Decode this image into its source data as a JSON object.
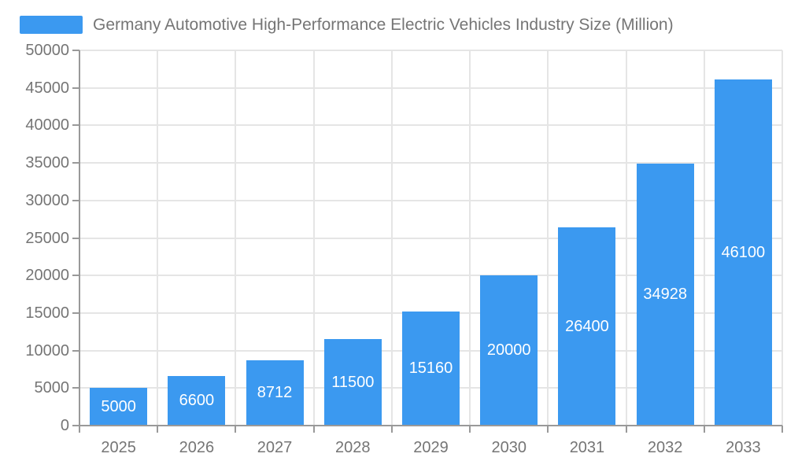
{
  "chart_data": {
    "type": "bar",
    "title": "Germany Automotive High-Performance Electric Vehicles Industry Size (Million)",
    "legend_entries": [
      "Germany Automotive High-Performance Electric Vehicles Industry Size (Million)"
    ],
    "legend_position": "top-left",
    "categories": [
      "2025",
      "2026",
      "2027",
      "2028",
      "2029",
      "2030",
      "2031",
      "2032",
      "2033"
    ],
    "series": [
      {
        "name": "Germany Automotive High-Performance Electric Vehicles Industry Size (Million)",
        "values": [
          5000,
          6600,
          8712,
          11500,
          15160,
          20000,
          26400,
          34928,
          46100
        ]
      }
    ],
    "data_labels": [
      "5000",
      "6600",
      "8712",
      "11500",
      "15160",
      "20000",
      "26400",
      "34928",
      "46100"
    ],
    "xlabel": "",
    "ylabel": "",
    "ylim": [
      0,
      50000
    ],
    "ytick_step": 5000,
    "yticks": [
      0,
      5000,
      10000,
      15000,
      20000,
      25000,
      30000,
      35000,
      40000,
      45000,
      50000
    ],
    "grid": true,
    "colors": {
      "bar": "#3b99f0",
      "bar_label": "#ffffff",
      "axis": "#999999",
      "grid": "#e5e5e5",
      "text": "#757575"
    }
  }
}
